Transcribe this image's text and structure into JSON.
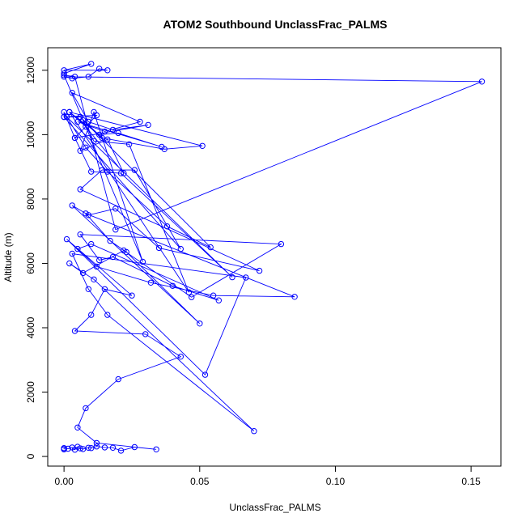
{
  "chart_data": {
    "type": "scatter",
    "title": "ATOM2 Southbound UnclassFrac_PALMS",
    "xlabel": "UnclassFrac_PALMS",
    "ylabel": "Altitude (m)",
    "xlim": [
      -0.006,
      0.161
    ],
    "ylim": [
      -300,
      12700
    ],
    "xticks": [
      0.0,
      0.05,
      0.1,
      0.15
    ],
    "xtick_labels": [
      "0.00",
      "0.05",
      "0.10",
      "0.15"
    ],
    "yticks": [
      0,
      2000,
      4000,
      6000,
      8000,
      10000,
      12000
    ],
    "ytick_labels": [
      "0",
      "2000",
      "4000",
      "6000",
      "8000",
      "10000",
      "12000"
    ],
    "grid": false,
    "connect_points": true,
    "color": "#0000ff",
    "series": [
      {
        "x": [
          0.0,
          0.0,
          0.0,
          0.0015,
          0.003,
          0.004,
          0.005,
          0.006,
          0.007,
          0.009,
          0.01,
          0.012,
          0.015,
          0.018,
          0.021,
          0.026,
          0.034,
          0.012,
          0.005,
          0.008,
          0.02,
          0.043,
          0.03,
          0.004,
          0.01,
          0.015,
          0.025,
          0.001,
          0.052,
          0.067,
          0.003,
          0.009,
          0.016,
          0.07,
          0.011,
          0.002,
          0.007,
          0.022,
          0.047,
          0.08,
          0.006,
          0.013,
          0.018,
          0.04,
          0.057,
          0.01,
          0.005,
          0.012,
          0.032,
          0.055,
          0.085,
          0.008,
          0.017,
          0.023,
          0.05,
          0.003,
          0.009,
          0.019,
          0.035,
          0.072,
          0.006,
          0.014,
          0.026,
          0.043,
          0.0,
          0.0,
          0.004,
          0.01,
          0.021,
          0.062,
          0.001,
          0.008,
          0.016,
          0.038,
          0.054,
          0.007,
          0.011,
          0.024,
          0.046,
          0.002,
          0.013,
          0.02,
          0.036,
          0.005,
          0.015,
          0.028,
          0.003,
          0.009,
          0.018,
          0.031,
          0.004,
          0.012,
          0.0,
          0.006,
          0.014,
          0.037,
          0.051,
          0.002,
          0.008,
          0.022,
          0.016,
          0.006,
          0.011,
          0.029,
          0.0,
          0.004,
          0.019,
          0.154,
          0.0,
          0.003,
          0.009,
          0.013,
          0.016,
          0.0,
          0.01,
          0.0
        ],
        "y": [
          220,
          230,
          260,
          240,
          280,
          210,
          300,
          250,
          230,
          270,
          260,
          310,
          280,
          270,
          180,
          290,
          220,
          420,
          900,
          1500,
          2400,
          3100,
          3800,
          3900,
          4400,
          5200,
          5000,
          6750,
          2540,
          5560,
          6300,
          5200,
          4400,
          790,
          5500,
          6000,
          5700,
          6400,
          4950,
          6600,
          6900,
          6100,
          6200,
          5300,
          4850,
          6600,
          6450,
          5900,
          5400,
          5000,
          4960,
          7550,
          6700,
          6350,
          4130,
          7800,
          7500,
          7700,
          6480,
          5770,
          8300,
          8900,
          8900,
          6450,
          10550,
          10700,
          9900,
          8850,
          8800,
          5570,
          10550,
          9600,
          8850,
          7150,
          6500,
          10450,
          9800,
          9700,
          5100,
          10700,
          10000,
          10050,
          9620,
          10400,
          10100,
          10400,
          11300,
          10400,
          10150,
          10300,
          9900,
          10600,
          10550,
          10550,
          9900,
          9550,
          9650,
          10700,
          10250,
          8800,
          9850,
          9500,
          10700,
          6050,
          11850,
          11800,
          7050,
          11650,
          11800,
          11750,
          11800,
          12050,
          12000,
          12000,
          12200,
          11900
        ]
      }
    ]
  }
}
